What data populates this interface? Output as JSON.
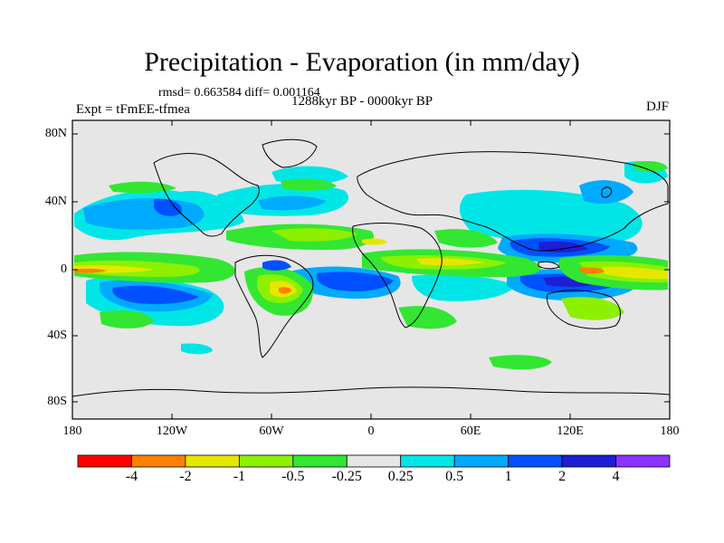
{
  "header": {
    "title": "Precipitation - Evaporation (in mm/day)",
    "stats": "rmsd= 0.663584 diff= 0.001164",
    "experiment": "Expt = tFmEE-tfmea",
    "period": "1288kyr BP - 0000kyr BP",
    "season": "DJF"
  },
  "axes": {
    "y_ticks": [
      "80N",
      "40N",
      "0",
      "40S",
      "80S"
    ],
    "x_ticks": [
      "180",
      "120W",
      "60W",
      "0",
      "60E",
      "120E",
      "180"
    ]
  },
  "colorbar": {
    "colors": [
      "#ff0000",
      "#ff8000",
      "#e6e600",
      "#8cf000",
      "#32e632",
      "#e6e6e6",
      "#00e6e6",
      "#00aaff",
      "#0050ff",
      "#1e1ed2",
      "#8c32ff"
    ],
    "labels": [
      "-4",
      "-2",
      "-1",
      "-0.5",
      "-0.25",
      "0.25",
      "0.5",
      "1",
      "2",
      "4"
    ]
  },
  "palette": {
    "ocean_bg": "#e6e6e6",
    "coast": "#000000"
  }
}
